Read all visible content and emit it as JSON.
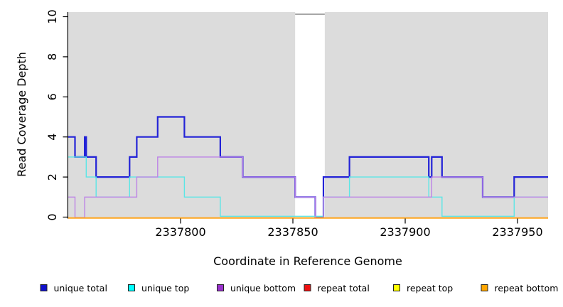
{
  "chart_data": {
    "type": "line",
    "subtype": "step-coverage",
    "title": "",
    "xlabel": "Coordinate in Reference Genome",
    "ylabel": "Read Coverage Depth",
    "xlim": [
      2337750,
      2337963.6
    ],
    "ylim": [
      0,
      10
    ],
    "xticks": [
      2337800,
      2337850,
      2337900,
      2337950
    ],
    "yticks": [
      0,
      2,
      4,
      6,
      8,
      10
    ],
    "grid": false,
    "plot_background": "#dcdcdc",
    "covered_regions": [
      [
        2337750,
        2337851
      ],
      [
        2337864.2,
        2337963.6
      ]
    ],
    "gap_region": {
      "start": 2337851,
      "end": 2337864.2,
      "top_line_color": "#8a8a8a"
    },
    "legend_position": "bottom",
    "legend": [
      {
        "label": "unique total",
        "color": "#1111cc"
      },
      {
        "label": "unique top",
        "color": "#00ffff"
      },
      {
        "label": "unique bottom",
        "color": "#9932cc"
      },
      {
        "label": "repeat total",
        "color": "#ee1111"
      },
      {
        "label": "repeat top",
        "color": "#ffff00"
      },
      {
        "label": "repeat bottom",
        "color": "#ffa500"
      }
    ],
    "series": [
      {
        "key": "unique_total",
        "name": "unique total",
        "line_color": "#2323d7",
        "line_width": 2.2,
        "steps": [
          [
            2337750,
            4
          ],
          [
            2337753,
            3
          ],
          [
            2337757.3,
            4
          ],
          [
            2337758,
            3
          ],
          [
            2337762.4,
            2
          ],
          [
            2337777.3,
            3
          ],
          [
            2337780.5,
            4
          ],
          [
            2337789.8,
            5
          ],
          [
            2337801.7,
            4
          ],
          [
            2337817.7,
            3
          ],
          [
            2337827.7,
            2
          ],
          [
            2337851,
            1
          ],
          [
            2337860,
            0
          ],
          [
            2337863.6,
            2
          ],
          [
            2337875.2,
            3
          ],
          [
            2337910.5,
            2
          ],
          [
            2337911.8,
            3
          ],
          [
            2337916.4,
            2
          ],
          [
            2337934.5,
            1
          ],
          [
            2337948.5,
            2
          ]
        ]
      },
      {
        "key": "unique_top",
        "name": "unique top",
        "line_color": "#5ce6e6",
        "line_width": 1.4,
        "steps": [
          [
            2337750,
            3
          ],
          [
            2337758,
            2
          ],
          [
            2337762.4,
            1
          ],
          [
            2337777.3,
            2
          ],
          [
            2337801.7,
            1
          ],
          [
            2337817.7,
            0
          ],
          [
            2337863.6,
            1
          ],
          [
            2337875.2,
            2
          ],
          [
            2337910.5,
            1
          ],
          [
            2337916.4,
            0
          ],
          [
            2337948.5,
            1
          ]
        ]
      },
      {
        "key": "unique_bottom",
        "name": "unique bottom",
        "line_color": "#bd84e6",
        "line_width": 1.4,
        "steps": [
          [
            2337750,
            1
          ],
          [
            2337753,
            0
          ],
          [
            2337757.3,
            1
          ],
          [
            2337780.5,
            2
          ],
          [
            2337789.8,
            3
          ],
          [
            2337827.7,
            2
          ],
          [
            2337851,
            1
          ],
          [
            2337860,
            0
          ],
          [
            2337863.6,
            1
          ],
          [
            2337911.8,
            2
          ],
          [
            2337934.5,
            1
          ]
        ]
      },
      {
        "key": "repeat_total",
        "name": "repeat total",
        "line_color": "#ee1111",
        "line_width": 1.1,
        "steps": [
          [
            2337750,
            0
          ]
        ]
      },
      {
        "key": "repeat_top",
        "name": "repeat top",
        "line_color": "#ffff00",
        "line_width": 1.1,
        "steps": [
          [
            2337750,
            0
          ]
        ]
      },
      {
        "key": "repeat_bottom",
        "name": "repeat bottom",
        "line_color": "#ffa51e",
        "line_width": 2,
        "steps": [
          [
            2337750,
            0
          ]
        ]
      }
    ]
  }
}
